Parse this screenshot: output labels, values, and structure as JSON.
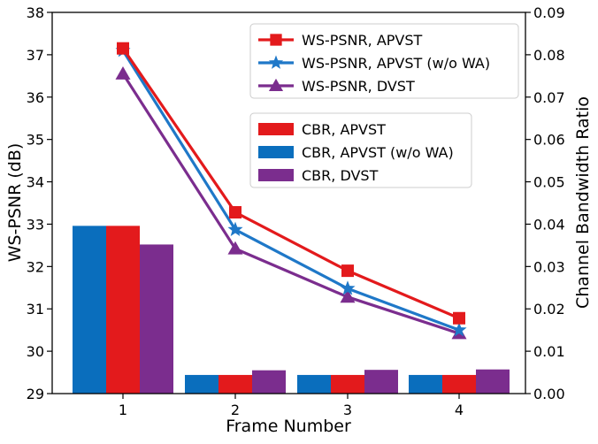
{
  "chart_data": {
    "type": "bar+line",
    "categories": [
      "1",
      "2",
      "3",
      "4"
    ],
    "xlabel": "Frame Number",
    "ylabel_left": "WS-PSNR (dB)",
    "ylabel_right": "Channel Bandwidth Ratio",
    "ylim_left": [
      29,
      38
    ],
    "ylim_right": [
      0.0,
      0.09
    ],
    "yticks_left": [
      "29",
      "30",
      "31",
      "32",
      "33",
      "34",
      "35",
      "36",
      "37",
      "38"
    ],
    "yticks_right": [
      "0.00",
      "0.01",
      "0.02",
      "0.03",
      "0.04",
      "0.05",
      "0.06",
      "0.07",
      "0.08",
      "0.09"
    ],
    "line_series": [
      {
        "name": "WS-PSNR, APVST",
        "values": [
          37.15,
          33.28,
          31.9,
          30.78
        ],
        "color": "#e31a1c",
        "marker": "square"
      },
      {
        "name": "WS-PSNR, APVST (w/o WA)",
        "values": [
          37.1,
          32.87,
          31.48,
          30.5
        ],
        "color": "#1f78c8",
        "marker": "star"
      },
      {
        "name": "WS-PSNR, DVST",
        "values": [
          36.55,
          32.42,
          31.28,
          30.42
        ],
        "color": "#7b2d8e",
        "marker": "triangle"
      }
    ],
    "bar_series": [
      {
        "name": "CBR, APVST",
        "values": [
          0.0396,
          0.0044,
          0.0044,
          0.0044
        ],
        "color": "#e31a1c"
      },
      {
        "name": "CBR, APVST (w/o WA)",
        "values": [
          0.0396,
          0.0044,
          0.0044,
          0.0044
        ],
        "color": "#0a6ebd"
      },
      {
        "name": "CBR, DVST",
        "values": [
          0.0352,
          0.0055,
          0.0056,
          0.0057
        ],
        "color": "#7b2d8e"
      }
    ],
    "legend_lines_position": "top-right",
    "legend_bars_position": "upper-right",
    "grid": false
  }
}
